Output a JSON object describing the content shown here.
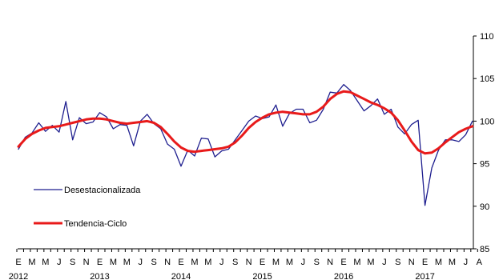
{
  "chart_data": {
    "type": "line",
    "title": "",
    "xlabel": "",
    "ylabel": "",
    "ylim": [
      85,
      110
    ],
    "y_ticks": [
      85,
      90,
      95,
      100,
      105,
      110
    ],
    "y_axis_side": "right",
    "grid": false,
    "legend_position": "left-bottom",
    "month_tick_labels": [
      "E",
      "M",
      "M",
      "J",
      "S",
      "N",
      "E",
      "M",
      "M",
      "J",
      "S",
      "N",
      "E",
      "M",
      "M",
      "J",
      "S",
      "N",
      "E",
      "M",
      "M",
      "J",
      "S",
      "N",
      "E",
      "M",
      "M",
      "J",
      "S",
      "N",
      "E",
      "M",
      "M",
      "J",
      "A"
    ],
    "year_labels": [
      "2012",
      "2013",
      "2014",
      "2015",
      "2016",
      "2017"
    ],
    "x": [
      "2012-01",
      "2012-02",
      "2012-03",
      "2012-04",
      "2012-05",
      "2012-06",
      "2012-07",
      "2012-08",
      "2012-09",
      "2012-10",
      "2012-11",
      "2012-12",
      "2013-01",
      "2013-02",
      "2013-03",
      "2013-04",
      "2013-05",
      "2013-06",
      "2013-07",
      "2013-08",
      "2013-09",
      "2013-10",
      "2013-11",
      "2013-12",
      "2014-01",
      "2014-02",
      "2014-03",
      "2014-04",
      "2014-05",
      "2014-06",
      "2014-07",
      "2014-08",
      "2014-09",
      "2014-10",
      "2014-11",
      "2014-12",
      "2015-01",
      "2015-02",
      "2015-03",
      "2015-04",
      "2015-05",
      "2015-06",
      "2015-07",
      "2015-08",
      "2015-09",
      "2015-10",
      "2015-11",
      "2015-12",
      "2016-01",
      "2016-02",
      "2016-03",
      "2016-04",
      "2016-05",
      "2016-06",
      "2016-07",
      "2016-08",
      "2016-09",
      "2016-10",
      "2016-11",
      "2016-12",
      "2017-01",
      "2017-02",
      "2017-03",
      "2017-04",
      "2017-05",
      "2017-06",
      "2017-07",
      "2017-08"
    ],
    "series": [
      {
        "name": "Desestacionalizada",
        "color": "#1f1f8f",
        "values": [
          96.7,
          98.1,
          98.6,
          99.8,
          98.8,
          99.5,
          98.7,
          102.3,
          97.8,
          100.4,
          99.7,
          99.9,
          101.0,
          100.5,
          99.1,
          99.6,
          99.5,
          97.1,
          100.0,
          100.8,
          99.7,
          99.1,
          97.3,
          96.7,
          94.7,
          96.6,
          95.9,
          98.0,
          97.9,
          95.8,
          96.5,
          96.7,
          97.8,
          98.9,
          100.0,
          100.6,
          100.3,
          100.5,
          101.9,
          99.4,
          100.9,
          101.4,
          101.4,
          99.8,
          100.1,
          101.4,
          103.4,
          103.3,
          104.3,
          103.6,
          102.4,
          101.2,
          101.8,
          102.6,
          100.8,
          101.4,
          99.3,
          98.5,
          99.6,
          100.1,
          90.1,
          94.5,
          96.6,
          97.8,
          97.8,
          97.6,
          98.4,
          100.0
        ]
      },
      {
        "name": "Tendencia-Ciclo",
        "color": "#e81a1a",
        "values": [
          97.0,
          97.9,
          98.5,
          98.9,
          99.2,
          99.3,
          99.4,
          99.6,
          99.8,
          100.0,
          100.2,
          100.3,
          100.3,
          100.2,
          100.0,
          99.8,
          99.7,
          99.8,
          99.9,
          100.0,
          99.8,
          99.3,
          98.5,
          97.6,
          96.9,
          96.5,
          96.4,
          96.5,
          96.6,
          96.7,
          96.8,
          97.0,
          97.5,
          98.3,
          99.2,
          99.9,
          100.4,
          100.8,
          101.0,
          101.1,
          101.0,
          100.9,
          100.8,
          100.8,
          101.1,
          101.7,
          102.6,
          103.2,
          103.5,
          103.4,
          103.0,
          102.6,
          102.2,
          101.9,
          101.5,
          101.0,
          100.1,
          98.9,
          97.6,
          96.6,
          96.2,
          96.3,
          96.8,
          97.5,
          98.1,
          98.7,
          99.1,
          99.4
        ]
      }
    ]
  }
}
